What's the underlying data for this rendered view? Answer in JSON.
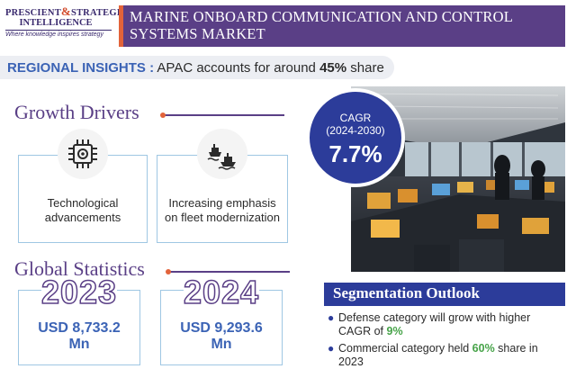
{
  "logo": {
    "line1_a": "PRESCIENT",
    "line1_amp": "&",
    "line1_b": "STRATEGIC",
    "line2": "INTELLIGENCE",
    "tagline": "Where knowledge inspires strategy"
  },
  "title": "MARINE ONBOARD COMMUNICATION AND CONTROL SYSTEMS MARKET",
  "regional": {
    "label": "REGIONAL INSIGHTS :",
    "text_before": " APAC accounts for around ",
    "percent": "45%",
    "text_after": " share"
  },
  "growth_drivers": {
    "heading": "Growth Drivers",
    "items": [
      {
        "icon": "chip-gear-icon",
        "text_line1": "Technological",
        "text_line2": "advancements"
      },
      {
        "icon": "ships-icon",
        "text_line1": "Increasing emphasis",
        "text_line2": "on fleet modernization"
      }
    ]
  },
  "cagr": {
    "label_line1": "CAGR",
    "label_line2": "(2024-2030)",
    "value": "7.7%"
  },
  "global_statistics": {
    "heading": "Global Statistics",
    "items": [
      {
        "year": "2023",
        "value_line1": "USD 8,733.2",
        "value_line2": "Mn"
      },
      {
        "year": "2024",
        "value_line1": "USD 9,293.6",
        "value_line2": "Mn"
      }
    ]
  },
  "segmentation": {
    "heading": "Segmentation Outlook",
    "items": [
      {
        "before": "Defense category will grow with higher CAGR of ",
        "highlight": "9%",
        "after": ""
      },
      {
        "before": "Commercial category held ",
        "highlight": "60%",
        "after": " share in 2023"
      }
    ]
  },
  "colors": {
    "brand_purple": "#5a3f86",
    "accent_orange": "#e2633a",
    "navy": "#2c3c9a",
    "blue_text": "#3b63b5",
    "highlight_green": "#47a349",
    "card_border": "#9fc7e3"
  }
}
